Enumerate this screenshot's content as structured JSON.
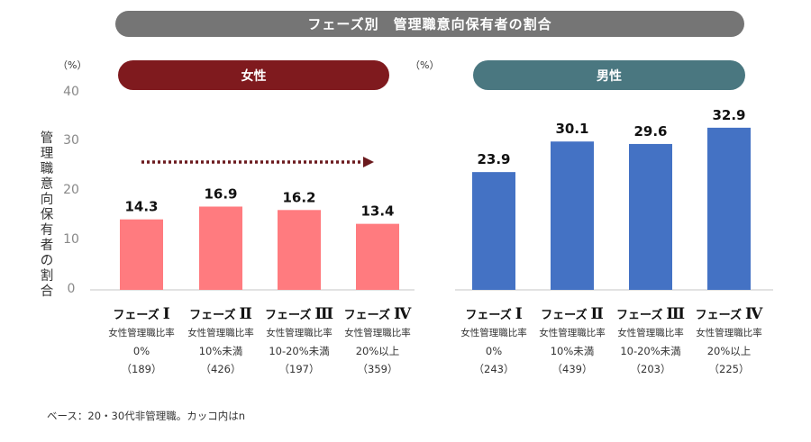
{
  "title": "フェーズ別　管理職意向保有者の割合",
  "footnote": "ベース：20・30代非管理職。カッコ内はn",
  "chart_data": [
    {
      "type": "bar",
      "title": "女性",
      "unit_label": "（%）",
      "ylabel": "管理職意向保有者の割合",
      "xlabel": "",
      "ylim": [
        0,
        40
      ],
      "yticks": [
        "0",
        "10",
        "20",
        "30",
        "40"
      ],
      "categories": [
        "フェーズⅠ",
        "フェーズⅡ",
        "フェーズⅢ",
        "フェーズⅣ"
      ],
      "values": [
        14.3,
        16.9,
        16.2,
        13.4
      ],
      "value_labels": [
        "14.3",
        "16.9",
        "16.2",
        "13.4"
      ],
      "color": "#ff7b7f",
      "annotation": "dotted arrow pointing right across phases",
      "annotation_color": "#6b1a1e",
      "category_details": [
        {
          "phase": "フェーズ",
          "roman": "Ⅰ",
          "desc": "女性管理職比率",
          "range": "0%",
          "n": "（189）"
        },
        {
          "phase": "フェーズ",
          "roman": "Ⅱ",
          "desc": "女性管理職比率",
          "range": "10%未満",
          "n": "（426）"
        },
        {
          "phase": "フェーズ",
          "roman": "Ⅲ",
          "desc": "女性管理職比率",
          "range": "10-20%未満",
          "n": "（197）"
        },
        {
          "phase": "フェーズ",
          "roman": "Ⅳ",
          "desc": "女性管理職比率",
          "range": "20%以上",
          "n": "（359）"
        }
      ]
    },
    {
      "type": "bar",
      "title": "男性",
      "unit_label": "（%）",
      "ylim": [
        0,
        40
      ],
      "categories": [
        "フェーズⅠ",
        "フェーズⅡ",
        "フェーズⅢ",
        "フェーズⅣ"
      ],
      "values": [
        23.9,
        30.1,
        29.6,
        32.9
      ],
      "value_labels": [
        "23.9",
        "30.1",
        "29.6",
        "32.9"
      ],
      "color": "#4472c4",
      "category_details": [
        {
          "phase": "フェーズ",
          "roman": "Ⅰ",
          "desc": "女性管理職比率",
          "range": "0%",
          "n": "（243）"
        },
        {
          "phase": "フェーズ",
          "roman": "Ⅱ",
          "desc": "女性管理職比率",
          "range": "10%未満",
          "n": "（439）"
        },
        {
          "phase": "フェーズ",
          "roman": "Ⅲ",
          "desc": "女性管理職比率",
          "range": "10-20%未満",
          "n": "（203）"
        },
        {
          "phase": "フェーズ",
          "roman": "Ⅳ",
          "desc": "女性管理職比率",
          "range": "20%以上",
          "n": "（225）"
        }
      ]
    }
  ]
}
